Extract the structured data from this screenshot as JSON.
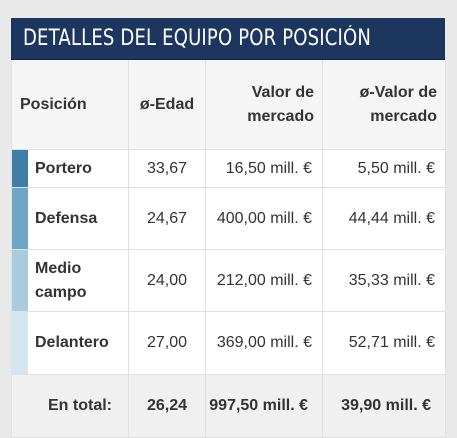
{
  "header": {
    "title": "DETALLES DEL EQUIPO POR POSICIÓN"
  },
  "columns": {
    "position": "Posición",
    "age": "ø-Edad",
    "value": "Valor de mercado",
    "avg_value": "ø-Valor de mercado"
  },
  "rows": [
    {
      "position": "Portero",
      "age": "33,67",
      "value": "16,50 mill. €",
      "avg_value": "5,50 mill. €",
      "color": "#3f7fa6"
    },
    {
      "position": "Defensa",
      "age": "24,67",
      "value": "400,00 mill. €",
      "avg_value": "44,44 mill. €",
      "color": "#6ea6c5"
    },
    {
      "position": "Medio campo",
      "age": "24,00",
      "value": "212,00 mill. €",
      "avg_value": "35,33 mill. €",
      "color": "#a8cbdf"
    },
    {
      "position": "Delantero",
      "age": "27,00",
      "value": "369,00 mill. €",
      "avg_value": "52,71 mill. €",
      "color": "#d5e5ef"
    }
  ],
  "total": {
    "label": "En total:",
    "age": "26,24",
    "value": "997,50 mill. €",
    "avg_value": "39,90 mill. €"
  }
}
